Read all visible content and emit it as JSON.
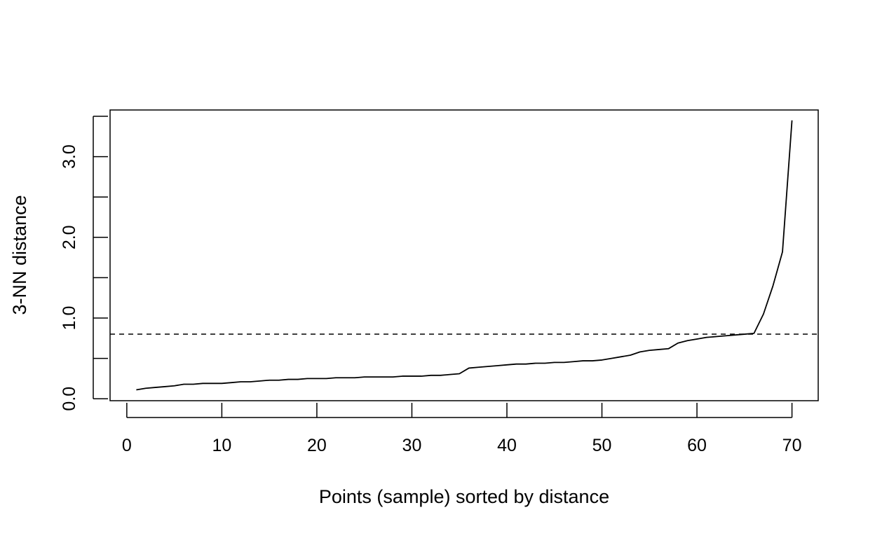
{
  "chart_data": {
    "type": "line",
    "title": "",
    "xlabel": "Points (sample) sorted by distance",
    "ylabel": "3-NN distance",
    "xlim": [
      -1.76,
      72.76
    ],
    "ylim": [
      -0.0242,
      3.5782
    ],
    "x_ticks": [
      0,
      10,
      20,
      30,
      40,
      50,
      60,
      70
    ],
    "x_tick_labels": [
      "0",
      "10",
      "20",
      "30",
      "40",
      "50",
      "60",
      "70"
    ],
    "y_ticks": [
      0.0,
      0.5,
      1.0,
      1.5,
      2.0,
      2.5,
      3.0,
      3.5
    ],
    "y_tick_labels": [
      "0.0",
      "",
      "1.0",
      "",
      "2.0",
      "",
      "3.0",
      ""
    ],
    "grid": false,
    "legend": "none",
    "series": [
      {
        "color": "#000000",
        "style": "solid",
        "x": [
          1,
          2,
          3,
          4,
          5,
          6,
          7,
          8,
          9,
          10,
          11,
          12,
          13,
          14,
          15,
          16,
          17,
          18,
          19,
          20,
          21,
          22,
          23,
          24,
          25,
          26,
          27,
          28,
          29,
          30,
          31,
          32,
          33,
          34,
          35,
          36,
          37,
          38,
          39,
          40,
          41,
          42,
          43,
          44,
          45,
          46,
          47,
          48,
          49,
          50,
          51,
          52,
          53,
          54,
          55,
          56,
          57,
          58,
          59,
          60,
          61,
          62,
          63,
          64,
          65,
          66,
          67,
          68,
          69,
          70
        ],
        "y": [
          0.11,
          0.13,
          0.14,
          0.15,
          0.16,
          0.18,
          0.18,
          0.19,
          0.19,
          0.19,
          0.2,
          0.21,
          0.21,
          0.22,
          0.23,
          0.23,
          0.24,
          0.24,
          0.25,
          0.25,
          0.25,
          0.26,
          0.26,
          0.26,
          0.27,
          0.27,
          0.27,
          0.27,
          0.28,
          0.28,
          0.28,
          0.29,
          0.29,
          0.3,
          0.31,
          0.38,
          0.39,
          0.4,
          0.41,
          0.42,
          0.43,
          0.43,
          0.44,
          0.44,
          0.45,
          0.45,
          0.46,
          0.47,
          0.47,
          0.48,
          0.5,
          0.52,
          0.54,
          0.58,
          0.6,
          0.61,
          0.62,
          0.69,
          0.72,
          0.74,
          0.76,
          0.77,
          0.78,
          0.79,
          0.8,
          0.81,
          1.05,
          1.4,
          1.82,
          3.45
        ]
      }
    ],
    "reference_lines": [
      {
        "orientation": "horizontal",
        "y": 0.8,
        "style": "dashed",
        "color": "#000000"
      }
    ]
  }
}
